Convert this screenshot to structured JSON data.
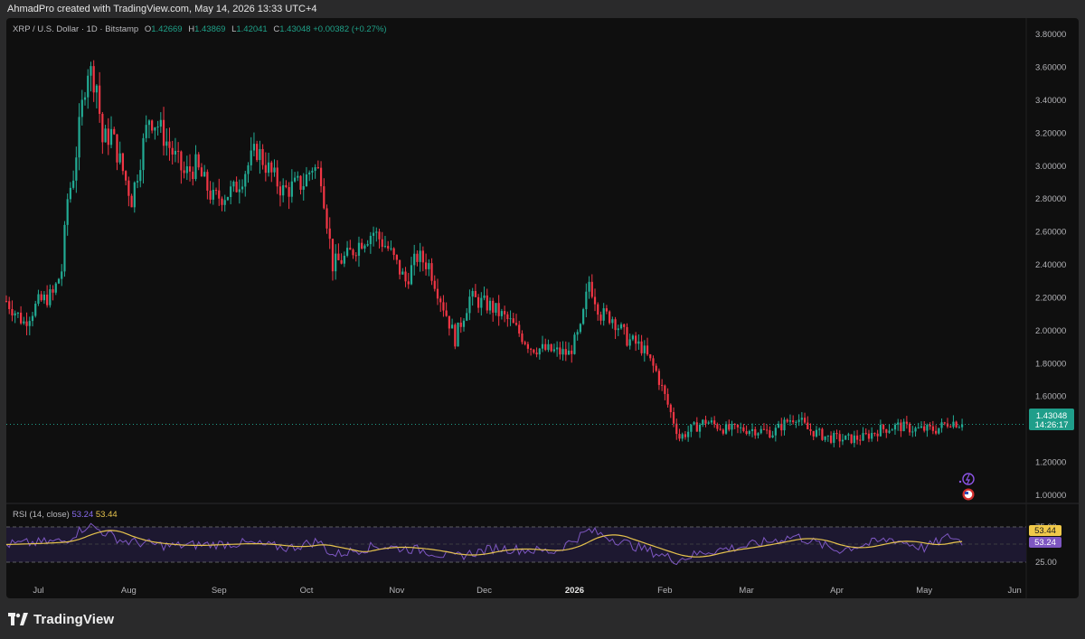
{
  "header": {
    "attribution": "AhmadPro created with TradingView.com, May 14, 2026 13:33 UTC+4"
  },
  "legend": {
    "symbol": "XRP / U.S. Dollar · 1D · Bitstamp",
    "open_label": "O",
    "open": "1.42669",
    "high_label": "H",
    "high": "1.43869",
    "low_label": "L",
    "low": "1.42041",
    "close_label": "C",
    "close": "1.43048",
    "change": "+0.00382 (+0.27%)"
  },
  "rsi_legend": {
    "name": "RSI (14, close)",
    "rsi_value": "53.24",
    "ma_value": "53.44"
  },
  "price_badge": {
    "price": "1.43048",
    "countdown": "14:26:17"
  },
  "rsi_badges": {
    "ma": "53.44",
    "rsi": "53.24"
  },
  "price_axis": {
    "ticks": [
      "3.80000",
      "3.60000",
      "3.40000",
      "3.20000",
      "3.00000",
      "2.80000",
      "2.60000",
      "2.40000",
      "2.20000",
      "2.00000",
      "1.80000",
      "1.60000",
      "1.20000",
      "1.00000"
    ],
    "tick_values": [
      3.8,
      3.6,
      3.4,
      3.2,
      3.0,
      2.8,
      2.6,
      2.4,
      2.2,
      2.0,
      1.8,
      1.6,
      1.2,
      1.0
    ]
  },
  "rsi_axis": {
    "ticks": [
      "75.00",
      "25.00"
    ],
    "tick_values": [
      75,
      25
    ]
  },
  "time_axis": {
    "labels": [
      "Jul",
      "Aug",
      "Sep",
      "Oct",
      "Nov",
      "Dec",
      "2026",
      "Feb",
      "Mar",
      "Apr",
      "May",
      "Jun"
    ],
    "label_dates": [
      "2025-07-01",
      "2025-08-01",
      "2025-09-01",
      "2025-10-01",
      "2025-11-01",
      "2025-12-01",
      "2026-01-01",
      "2026-02-01",
      "2026-03-01",
      "2026-04-01",
      "2026-05-01",
      "2026-06-01"
    ],
    "bold": [
      false,
      false,
      false,
      false,
      false,
      false,
      true,
      false,
      false,
      false,
      false,
      false
    ]
  },
  "branding": {
    "name": "TradingView"
  },
  "colors": {
    "up": "#22ab94",
    "down": "#f23645",
    "rsi_line": "#7e57c2",
    "rsi_ma": "#e6c34d",
    "badge_price": "#1f9e8a",
    "badge_ma": "#f0c94a",
    "badge_rsi": "#7e57c2",
    "background": "#0f0f0f"
  },
  "chart_data": {
    "type": "candlestick",
    "interval": "1D",
    "y_axis_range": [
      0.95,
      3.9
    ],
    "x_axis_range": [
      "2025-06-20",
      "2026-06-05"
    ],
    "price_path": [
      [
        "2025-06-20",
        2.18
      ],
      [
        "2025-06-26",
        2.05
      ],
      [
        "2025-07-01",
        2.17
      ],
      [
        "2025-07-06",
        2.22
      ],
      [
        "2025-07-09",
        2.37
      ],
      [
        "2025-07-11",
        2.8
      ],
      [
        "2025-07-13",
        2.95
      ],
      [
        "2025-07-17",
        3.5
      ],
      [
        "2025-07-18",
        3.6
      ],
      [
        "2025-07-21",
        3.5
      ],
      [
        "2025-07-23",
        3.15
      ],
      [
        "2025-07-26",
        3.2
      ],
      [
        "2025-08-02",
        2.8
      ],
      [
        "2025-08-08",
        3.3
      ],
      [
        "2025-08-11",
        3.25
      ],
      [
        "2025-08-14",
        3.15
      ],
      [
        "2025-08-20",
        2.95
      ],
      [
        "2025-08-24",
        3.0
      ],
      [
        "2025-08-30",
        2.8
      ],
      [
        "2025-09-06",
        2.85
      ],
      [
        "2025-09-14",
        3.1
      ],
      [
        "2025-09-19",
        2.95
      ],
      [
        "2025-09-23",
        2.85
      ],
      [
        "2025-09-30",
        2.9
      ],
      [
        "2025-10-03",
        3.0
      ],
      [
        "2025-10-06",
        2.95
      ],
      [
        "2025-10-10",
        2.4
      ],
      [
        "2025-10-15",
        2.45
      ],
      [
        "2025-10-20",
        2.55
      ],
      [
        "2025-10-24",
        2.6
      ],
      [
        "2025-10-29",
        2.5
      ],
      [
        "2025-11-04",
        2.3
      ],
      [
        "2025-11-08",
        2.45
      ],
      [
        "2025-11-12",
        2.4
      ],
      [
        "2025-11-16",
        2.2
      ],
      [
        "2025-11-21",
        1.95
      ],
      [
        "2025-11-26",
        2.2
      ],
      [
        "2025-12-03",
        2.15
      ],
      [
        "2025-12-10",
        2.05
      ],
      [
        "2025-12-17",
        1.9
      ],
      [
        "2025-12-23",
        1.88
      ],
      [
        "2025-12-30",
        1.86
      ],
      [
        "2026-01-03",
        2.0
      ],
      [
        "2026-01-06",
        2.3
      ],
      [
        "2026-01-10",
        2.1
      ],
      [
        "2026-01-14",
        2.08
      ],
      [
        "2026-01-19",
        1.95
      ],
      [
        "2026-01-24",
        1.9
      ],
      [
        "2026-01-29",
        1.75
      ],
      [
        "2026-02-01",
        1.6
      ],
      [
        "2026-02-05",
        1.4
      ],
      [
        "2026-02-06",
        1.35
      ],
      [
        "2026-02-10",
        1.4
      ],
      [
        "2026-02-15",
        1.45
      ],
      [
        "2026-02-22",
        1.4
      ],
      [
        "2026-03-03",
        1.4
      ],
      [
        "2026-03-10",
        1.38
      ],
      [
        "2026-03-15",
        1.45
      ],
      [
        "2026-03-18",
        1.48
      ],
      [
        "2026-03-22",
        1.4
      ],
      [
        "2026-03-29",
        1.35
      ],
      [
        "2026-04-04",
        1.34
      ],
      [
        "2026-04-10",
        1.35
      ],
      [
        "2026-04-16",
        1.4
      ],
      [
        "2026-04-22",
        1.42
      ],
      [
        "2026-04-28",
        1.4
      ],
      [
        "2026-05-05",
        1.4
      ],
      [
        "2026-05-10",
        1.45
      ],
      [
        "2026-05-14",
        1.43
      ]
    ],
    "rsi_path": [
      [
        "2025-06-20",
        50
      ],
      [
        "2025-07-10",
        55
      ],
      [
        "2025-07-18",
        78
      ],
      [
        "2025-07-30",
        55
      ],
      [
        "2025-08-15",
        48
      ],
      [
        "2025-09-10",
        52
      ],
      [
        "2025-09-25",
        45
      ],
      [
        "2025-10-05",
        55
      ],
      [
        "2025-10-10",
        35
      ],
      [
        "2025-10-25",
        48
      ],
      [
        "2025-11-10",
        42
      ],
      [
        "2025-11-20",
        32
      ],
      [
        "2025-12-05",
        45
      ],
      [
        "2025-12-25",
        40
      ],
      [
        "2026-01-06",
        70
      ],
      [
        "2026-01-20",
        50
      ],
      [
        "2026-02-05",
        28
      ],
      [
        "2026-02-15",
        40
      ],
      [
        "2026-03-01",
        48
      ],
      [
        "2026-03-18",
        62
      ],
      [
        "2026-04-01",
        42
      ],
      [
        "2026-04-20",
        58
      ],
      [
        "2026-05-01",
        45
      ],
      [
        "2026-05-10",
        62
      ],
      [
        "2026-05-14",
        53.24
      ]
    ]
  }
}
